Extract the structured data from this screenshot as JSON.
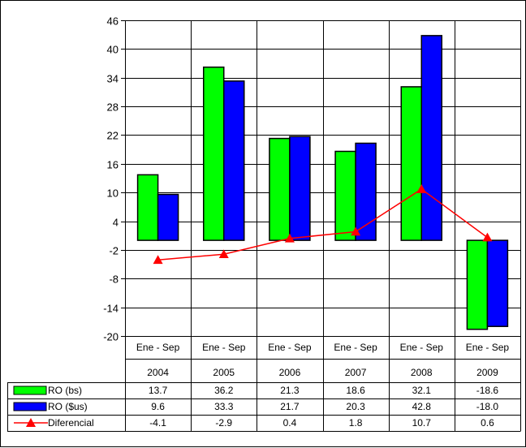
{
  "chart_data": {
    "type": "bar",
    "title": "",
    "xlabel": "",
    "ylabel": "",
    "ylim": [
      -20,
      46
    ],
    "yticks": [
      46,
      40,
      34,
      28,
      22,
      16,
      10,
      4,
      -2,
      -8,
      -14,
      -20
    ],
    "categories": [
      {
        "line1": "Ene - Sep",
        "line2": "2004"
      },
      {
        "line1": "Ene - Sep",
        "line2": "2005"
      },
      {
        "line1": "Ene - Sep",
        "line2": "2006"
      },
      {
        "line1": "Ene - Sep",
        "line2": "2007"
      },
      {
        "line1": "Ene - Sep",
        "line2": "2008"
      },
      {
        "line1": "Ene - Sep",
        "line2": "2009"
      }
    ],
    "series": [
      {
        "name": "RO (bs)",
        "kind": "bar",
        "color": "#00ff00",
        "values": [
          13.7,
          36.2,
          21.3,
          18.6,
          32.1,
          -18.6
        ],
        "labels": [
          "13.7",
          "36.2",
          "21.3",
          "18.6",
          "32.1",
          "-18.6"
        ]
      },
      {
        "name": "RO ($us)",
        "kind": "bar",
        "color": "#0000ff",
        "values": [
          9.6,
          33.3,
          21.7,
          20.3,
          42.8,
          -18.0
        ],
        "labels": [
          "9.6",
          "33.3",
          "21.7",
          "20.3",
          "42.8",
          "-18.0"
        ]
      },
      {
        "name": "Diferencial",
        "kind": "line",
        "color": "#ff0000",
        "marker": "triangle",
        "values": [
          -4.1,
          -2.9,
          0.4,
          1.8,
          10.7,
          0.6
        ],
        "labels": [
          "-4.1",
          "-2.9",
          "0.4",
          "1.8",
          "10.7",
          "0.6"
        ]
      }
    ],
    "grid": true,
    "legend": "data-table-left"
  }
}
